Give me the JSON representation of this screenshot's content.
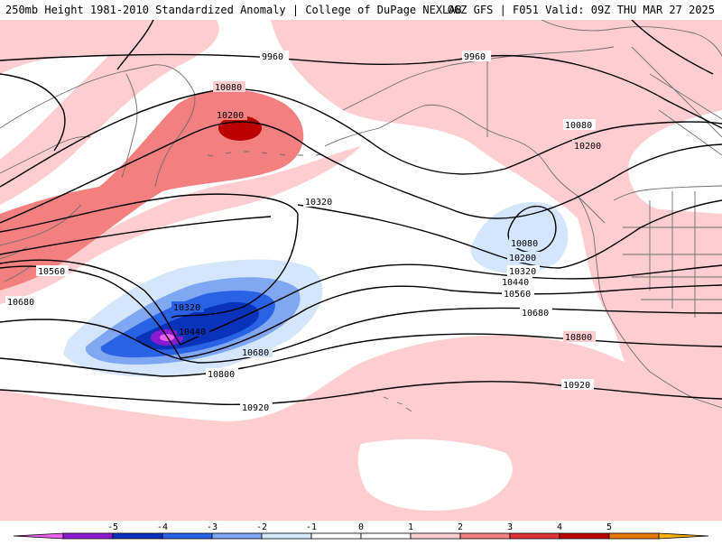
{
  "header": {
    "title_left": "250mb Height 1981-2010 Standardized Anomaly | College of DuPage NEXLAB",
    "title_right": "06Z GFS | F051 Valid: 09Z THU MAR 27 2025"
  },
  "map": {
    "contour_labels": {
      "h9960_a": "9960",
      "h9960_b": "9960",
      "h10080_a": "10080",
      "h10080_b": "10080",
      "h10080_c": "10080",
      "h10200_a": "10200",
      "h10200_b": "10200",
      "h10200_c": "10200",
      "h10320_a": "10320",
      "h10320_b": "10320",
      "h10320_c": "10320",
      "h10440_a": "10440",
      "h10440_b": "10440",
      "h10560_a": "10560",
      "h10560_b": "10560",
      "h10680_a": "10680",
      "h10680_b": "10680",
      "h10680_c": "10680",
      "h10800_a": "10800",
      "h10800_b": "10800",
      "h10920_a": "10920",
      "h10920_b": "10920"
    },
    "colors": {
      "ocean": "#ffffff",
      "coast": "#6e6e6e",
      "contour": "#000000"
    }
  },
  "colorbar": {
    "ticks": [
      "-5",
      "-4",
      "-3",
      "-2",
      "-1",
      "0",
      "1",
      "2",
      "3",
      "4",
      "5"
    ],
    "segments": [
      {
        "color": "#ee60ee"
      },
      {
        "color": "#8a1ad2"
      },
      {
        "color": "#0a33bc"
      },
      {
        "color": "#2a62e6"
      },
      {
        "color": "#7fa7f2"
      },
      {
        "color": "#d3e6fb"
      },
      {
        "color": "#ffffff"
      },
      {
        "color": "#ffffff"
      },
      {
        "color": "#fecdd0"
      },
      {
        "color": "#f47f7f"
      },
      {
        "color": "#e03434"
      },
      {
        "color": "#bb0000"
      },
      {
        "color": "#e87a00"
      },
      {
        "color": "#ffb000"
      }
    ]
  }
}
